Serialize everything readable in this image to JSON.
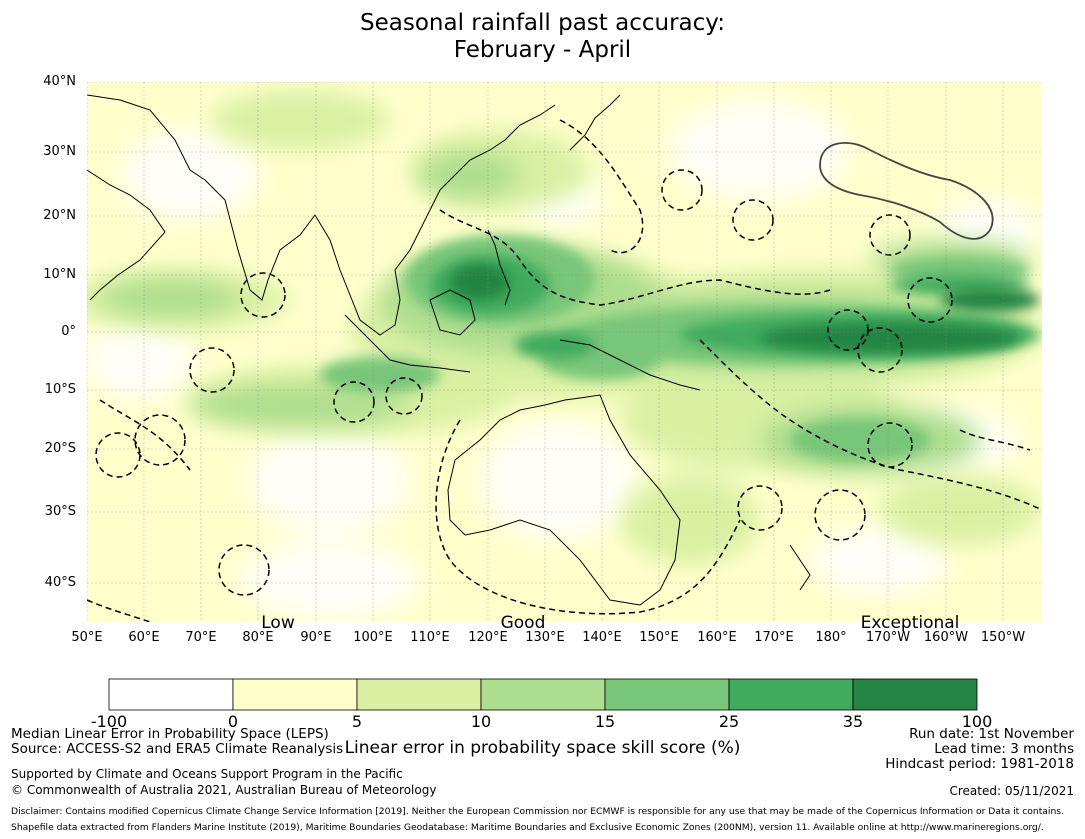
{
  "title": {
    "line1": "Seasonal rainfall past accuracy:",
    "line2": "February - April"
  },
  "latitude_labels": [
    "40°N",
    "30°N",
    "20°N",
    "10°N",
    "0°",
    "10°S",
    "20°S",
    "30°S",
    "40°S"
  ],
  "longitude_labels": [
    "50°E",
    "60°E",
    "70°E",
    "80°E",
    "90°E",
    "100°E",
    "110°E",
    "120°E",
    "130°E",
    "140°E",
    "150°E",
    "160°E",
    "170°E",
    "180°",
    "170°W",
    "160°W",
    "150°W"
  ],
  "category_labels": [
    "Low",
    "Good",
    "Exceptional"
  ],
  "colorbar": {
    "ticks": [
      "-100",
      "0",
      "5",
      "10",
      "15",
      "25",
      "35",
      "100"
    ],
    "colors": [
      "#ffffff",
      "#ffffcc",
      "#d9f0a3",
      "#addd8e",
      "#78c679",
      "#41ab5d",
      "#238443"
    ],
    "label": "Linear error in probability space skill score (%)"
  },
  "info_left": {
    "line1": "Median Linear Error in Probability Space (LEPS)",
    "line2": "Source: ACCESS-S2 and ERA5 Climate Reanalysis",
    "line3": "Supported by Climate and Oceans Support Program in the Pacific",
    "line4": "© Commonwealth of Australia 2021, Australian Bureau of Meteorology"
  },
  "info_right": {
    "line1": "Run date: 1st November",
    "line2": "Lead time: 3 months",
    "line3": "Hindcast period: 1981-2018",
    "created": "Created: 05/11/2021"
  },
  "disclaimer": {
    "line1": "Disclaimer: Contains modified Copernicus Climate Change Service Information [2019]. Neither the European Commission nor ECMWF is responsible for any use that may be made of the Copernicus Information or Data it contains.",
    "line2": "Shapefile data extracted from Flanders Marine Institute (2019), Maritime Boundaries Geodatabase: Maritime Boundaries and Exclusive Economic Zones (200NM), version 11. Available online at http://www.marineregions.org/."
  }
}
